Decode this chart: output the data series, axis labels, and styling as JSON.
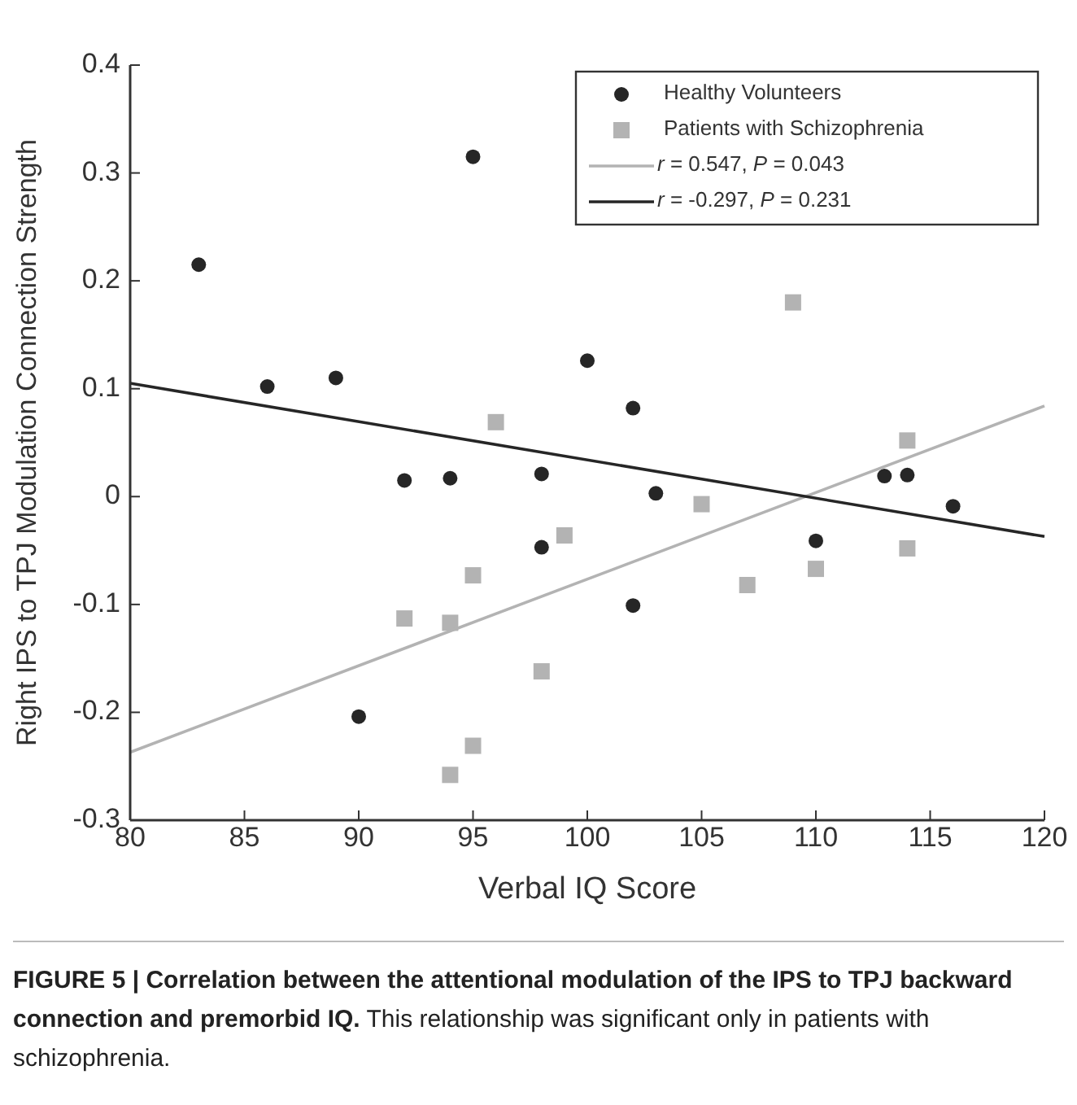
{
  "chart_data": {
    "type": "scatter",
    "title": "FIGURE 5 | Correlation between the attentional modulation of the IPS to TPJ backward connection and premorbid IQ.",
    "annotations": [
      "This relationship was significant only in patients with schizophrenia."
    ],
    "xlabel": "Verbal IQ Score",
    "ylabel": "Right IPS to TPJ Modulation Connection Strength",
    "xlim": [
      80,
      120
    ],
    "xticks": [
      80,
      85,
      90,
      95,
      100,
      105,
      110,
      115,
      120
    ],
    "ylim": [
      -0.3,
      0.4
    ],
    "yticks": [
      -0.3,
      -0.2,
      -0.1,
      0,
      0.1,
      0.2,
      0.3,
      0.4
    ],
    "grid": false,
    "legend": "top right",
    "series": [
      {
        "name": "Healthy Volunteers",
        "color": "#262626",
        "marker": "circle",
        "x": [
          83,
          86,
          89,
          90,
          92,
          94,
          95,
          98,
          98,
          100,
          102,
          102,
          103,
          110,
          113,
          114,
          116
        ],
        "values": [
          0.215,
          0.102,
          0.11,
          -0.204,
          0.015,
          0.017,
          0.315,
          0.021,
          -0.047,
          0.126,
          0.082,
          -0.101,
          0.003,
          -0.041,
          0.019,
          0.02,
          -0.009
        ]
      },
      {
        "name": "Patients with Schizophrenia",
        "color": "#b3b3b3",
        "marker": "square",
        "x": [
          92,
          94,
          94,
          95,
          95,
          96,
          98,
          99,
          105,
          107,
          109,
          110,
          114,
          114
        ],
        "values": [
          -0.113,
          -0.117,
          -0.258,
          -0.073,
          -0.231,
          0.069,
          -0.162,
          -0.036,
          -0.007,
          -0.082,
          0.18,
          -0.067,
          0.052,
          -0.048
        ]
      },
      {
        "name": "r = 0.547, P = 0.043",
        "type": "line",
        "color": "#b3b3b3",
        "marker": "none",
        "x": [
          80,
          120
        ],
        "values": [
          -0.237,
          0.084
        ]
      },
      {
        "name": "r = -0.297, P = 0.231",
        "type": "line",
        "color": "#262626",
        "marker": "none",
        "x": [
          80,
          120
        ],
        "values": [
          0.105,
          -0.037
        ]
      }
    ]
  }
}
